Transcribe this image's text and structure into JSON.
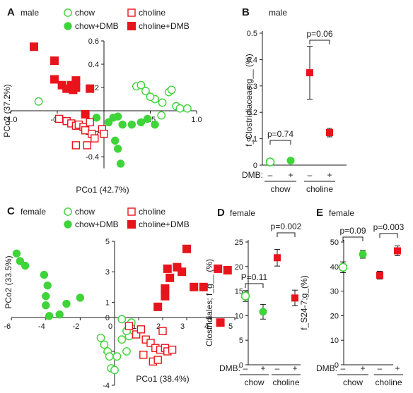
{
  "colors": {
    "chow": "#3fd43a",
    "choline": "#e8141c",
    "axis": "#1a1a1a",
    "error": "#1a1a1a"
  },
  "chart_data": [
    {
      "panel": "A",
      "type": "scatter",
      "sex_label": "male",
      "xlabel": "PCo1 (42.7%)",
      "ylabel": "PCo2 (37.2%)",
      "xlim": [
        -1.0,
        1.0
      ],
      "ylim": [
        -0.5,
        0.6
      ],
      "xticks": [
        -1.0,
        -0.5,
        0.5,
        1.0
      ],
      "xtick_labels": [
        "-1.0",
        "-0.5",
        "0.5",
        "1.0"
      ],
      "yticks": [
        0.6,
        0.4,
        0.2,
        -0.2,
        -0.4
      ],
      "ytick_labels": [
        "0.6",
        "0.4",
        "0.2",
        "-0.2",
        "-0.4"
      ],
      "legend": [
        "chow",
        "choline",
        "chow+DMB",
        "choline+DMB"
      ],
      "series": [
        {
          "name": "chow",
          "marker": "circle-open",
          "x": [
            -0.7,
            0.35,
            0.4,
            0.45,
            0.55,
            0.63,
            0.7,
            0.73,
            0.78,
            0.82,
            0.9,
            0.62,
            0.5
          ],
          "y": [
            0.08,
            0.21,
            0.22,
            0.17,
            0.1,
            0.07,
            0.16,
            0.18,
            0.04,
            0.02,
            0.02,
            -0.04,
            0.12
          ]
        },
        {
          "name": "chow+DMB",
          "marker": "circle-filled",
          "x": [
            -0.08,
            0.05,
            0.1,
            0.15,
            0.2,
            0.3,
            0.4,
            0.47,
            0.55,
            0.12,
            0.15,
            0.18
          ],
          "y": [
            -0.06,
            -0.1,
            -0.06,
            -0.05,
            -0.12,
            -0.12,
            -0.1,
            -0.07,
            -0.12,
            -0.26,
            -0.33,
            -0.46
          ]
        },
        {
          "name": "choline",
          "marker": "square-open",
          "x": [
            -0.48,
            -0.4,
            -0.35,
            -0.3,
            -0.27,
            -0.22,
            -0.15,
            -0.2,
            -0.13,
            -0.02,
            -0.1,
            -0.18,
            -0.3,
            0.0
          ],
          "y": [
            -0.07,
            -0.09,
            -0.11,
            -0.13,
            -0.12,
            -0.14,
            -0.1,
            -0.17,
            -0.2,
            -0.16,
            -0.24,
            -0.3,
            -0.3,
            -0.2
          ]
        },
        {
          "name": "choline+DMB",
          "marker": "square-filled",
          "x": [
            -0.75,
            -0.53,
            -0.53,
            -0.45,
            -0.4,
            -0.35,
            -0.33,
            -0.3,
            -0.3,
            -0.15,
            -0.2
          ],
          "y": [
            0.55,
            0.43,
            0.27,
            0.22,
            0.19,
            0.22,
            0.18,
            0.26,
            0.2,
            0.19,
            -0.03
          ]
        }
      ]
    },
    {
      "panel": "B",
      "type": "scatter-errorbar",
      "sex_label": "male",
      "ylabel": "f_Clostridiaceae;g__ (%)",
      "ylim": [
        0,
        0.5
      ],
      "yticks": [
        0,
        0.1,
        0.2,
        0.3,
        0.4,
        0.5
      ],
      "ytick_labels": [
        "0",
        "0.1",
        "0.2",
        "0.3",
        "0.4",
        "0.5"
      ],
      "xlabel": "DMB:",
      "dmb_labels": [
        "–",
        "+",
        "–",
        "+"
      ],
      "groups": [
        "chow",
        "choline"
      ],
      "points": [
        {
          "group": "chow",
          "dmb": "–",
          "mean": 0.012,
          "err": 0.006
        },
        {
          "group": "chow",
          "dmb": "+",
          "mean": 0.017,
          "err": 0.007
        },
        {
          "group": "choline",
          "dmb": "–",
          "mean": 0.35,
          "err": 0.1
        },
        {
          "group": "choline",
          "dmb": "+",
          "mean": 0.123,
          "err": 0.016
        }
      ],
      "annotations": [
        "p=0.74",
        "p=0.06"
      ]
    },
    {
      "panel": "C",
      "type": "scatter",
      "sex_label": "female",
      "xlabel": "PCo1 (38.4%)",
      "ylabel": "PCo2 (33.5%)",
      "xlim": [
        -6,
        5
      ],
      "ylim": [
        -4,
        5
      ],
      "xticks": [
        -6,
        -4,
        -2,
        0,
        1,
        2,
        3,
        4,
        5
      ],
      "xtick_labels": [
        "-6",
        "-4",
        "-2",
        "0",
        "1",
        "2",
        "3",
        "4",
        "5"
      ],
      "yticks": [
        5,
        3,
        1,
        0,
        -2,
        -4
      ],
      "ytick_labels": [
        "5",
        "3",
        "1",
        "0",
        "-2",
        "-4"
      ],
      "legend": [
        "chow",
        "choline",
        "chow+DMB",
        "choline+DMB"
      ],
      "series": [
        {
          "name": "chow",
          "marker": "circle-open",
          "x": [
            -0.8,
            -0.6,
            -0.4,
            -0.3,
            -0.2,
            0.0,
            0.1,
            0.3,
            0.5,
            0.6,
            0.5,
            0.7,
            0.3
          ],
          "y": [
            -1.2,
            -1.6,
            -2.0,
            -2.3,
            -3.0,
            -3.1,
            -2.3,
            -1.3,
            -2.0,
            -1.1,
            -0.8,
            -0.3,
            -0.1
          ]
        },
        {
          "name": "chow+DMB",
          "marker": "circle-filled",
          "x": [
            -5.7,
            -5.5,
            -5.2,
            -4.1,
            -3.9,
            -4.0,
            -4.0,
            -3.8,
            -2.8,
            -2.0,
            -3.2
          ],
          "y": [
            4.2,
            3.7,
            3.4,
            2.8,
            2.1,
            1.4,
            0.8,
            0.1,
            0.9,
            1.3,
            0.2
          ]
        },
        {
          "name": "choline",
          "marker": "square-open",
          "x": [
            0.6,
            0.9,
            1.1,
            1.3,
            1.5,
            1.7,
            1.9,
            2.1,
            2.2,
            2.4,
            1.2,
            1.6,
            1.8,
            2.0
          ],
          "y": [
            -0.5,
            -1.0,
            -0.7,
            -1.3,
            -1.5,
            -1.8,
            -1.9,
            -1.8,
            -2.0,
            -1.9,
            -2.2,
            -2.6,
            -2.5,
            -0.8
          ]
        },
        {
          "name": "choline+DMB",
          "marker": "square-filled",
          "x": [
            1.8,
            2.1,
            2.3,
            2.6,
            2.8,
            3.0,
            2.1,
            2.2,
            3.3,
            3.7,
            4.3,
            4.7,
            4.4
          ],
          "y": [
            0.7,
            1.4,
            2.6,
            3.3,
            3.0,
            4.5,
            1.9,
            3.2,
            2.0,
            2.0,
            3.2,
            3.1,
            -0.3
          ]
        }
      ]
    },
    {
      "panel": "D",
      "type": "scatter-errorbar",
      "sex_label": "female",
      "ylabel": "Clostridiales; f_g__ (%)",
      "ylim": [
        0,
        25
      ],
      "yticks": [
        0,
        5,
        10,
        15,
        20,
        25
      ],
      "ytick_labels": [
        "0",
        "5",
        "10",
        "15",
        "20",
        "25"
      ],
      "xlabel": "DMB:",
      "dmb_labels": [
        "–",
        "+",
        "–",
        "+"
      ],
      "groups": [
        "chow",
        "choline"
      ],
      "points": [
        {
          "group": "chow",
          "dmb": "–",
          "mean": 14.0,
          "err": 1.1
        },
        {
          "group": "chow",
          "dmb": "+",
          "mean": 10.8,
          "err": 1.5
        },
        {
          "group": "choline",
          "dmb": "–",
          "mean": 21.8,
          "err": 1.7
        },
        {
          "group": "choline",
          "dmb": "+",
          "mean": 13.6,
          "err": 1.6
        }
      ],
      "annotations": [
        "P=0.11",
        "p=0.002"
      ]
    },
    {
      "panel": "E",
      "type": "scatter-errorbar",
      "sex_label": "female",
      "ylabel": "f_S24-7;g_(%)",
      "ylim": [
        0,
        50
      ],
      "yticks": [
        0,
        10,
        20,
        30,
        40,
        50
      ],
      "ytick_labels": [
        "0",
        "10",
        "20",
        "30",
        "40",
        "50"
      ],
      "xlabel": "DMB:",
      "dmb_labels": [
        "–",
        "+",
        "–",
        "+"
      ],
      "groups": [
        "chow",
        "choline"
      ],
      "points": [
        {
          "group": "chow",
          "dmb": "–",
          "mean": 39.7,
          "err": 2.2
        },
        {
          "group": "chow",
          "dmb": "+",
          "mean": 45.0,
          "err": 1.6
        },
        {
          "group": "choline",
          "dmb": "–",
          "mean": 36.5,
          "err": 1.6
        },
        {
          "group": "choline",
          "dmb": "+",
          "mean": 46.4,
          "err": 2.0
        }
      ],
      "annotations": [
        "p=0.09",
        "p=0.003"
      ]
    }
  ]
}
